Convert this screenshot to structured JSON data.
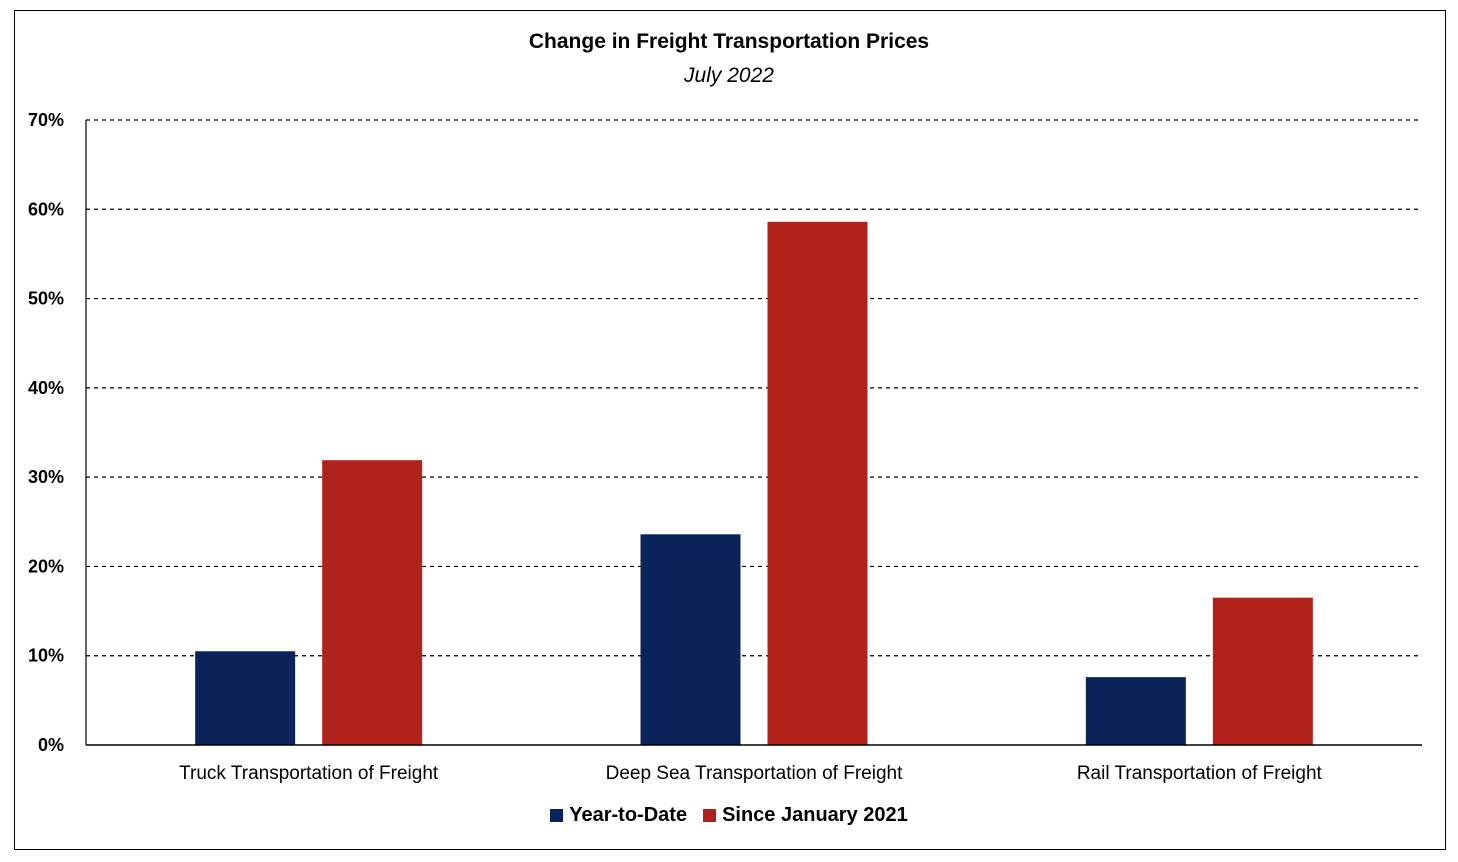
{
  "chart_data": {
    "type": "bar",
    "title": "Change in Freight Transportation Prices",
    "subtitle": "July 2022",
    "categories": [
      "Truck Transportation of Freight",
      "Deep Sea Transportation of Freight",
      "Rail Transportation of Freight"
    ],
    "series": [
      {
        "name": "Year-to-Date",
        "color": "#0a2459",
        "values": [
          10.5,
          23.6,
          7.6
        ]
      },
      {
        "name": "Since January 2021",
        "color": "#b0221c",
        "values": [
          31.9,
          58.6,
          16.5
        ]
      }
    ],
    "ylim": [
      0,
      70
    ],
    "yticks": [
      0,
      10,
      20,
      30,
      40,
      50,
      60,
      70
    ],
    "ytick_labels": [
      "0%",
      "10%",
      "20%",
      "30%",
      "40%",
      "50%",
      "60%",
      "70%"
    ],
    "grid": true,
    "legend_position": "bottom"
  }
}
